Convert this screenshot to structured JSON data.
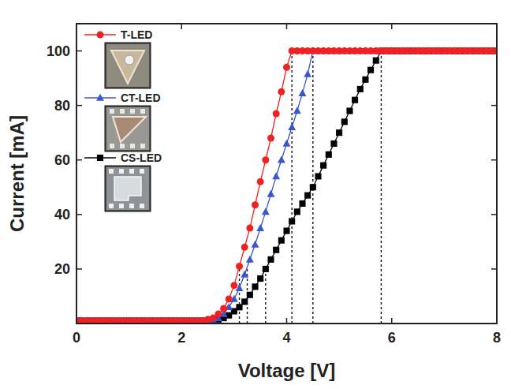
{
  "chart_data": {
    "type": "line",
    "x_label": "Voltage [V]",
    "y_label": "Current [mA]",
    "xlim": [
      0,
      8
    ],
    "ylim": [
      0,
      110
    ],
    "xticks": [
      0,
      2,
      4,
      6,
      8
    ],
    "yticks": [
      20,
      40,
      60,
      80,
      100
    ],
    "legend": "upper left",
    "x": [
      0,
      0.1,
      0.2,
      0.3,
      0.4,
      0.5,
      0.6,
      0.7,
      0.8,
      0.9,
      1,
      1.1,
      1.2,
      1.3,
      1.4,
      1.5,
      1.6,
      1.7,
      1.8,
      1.9,
      2,
      2.1,
      2.2,
      2.3,
      2.4,
      2.5,
      2.6,
      2.7,
      2.8,
      2.9,
      3,
      3.1,
      3.2,
      3.3,
      3.4,
      3.5,
      3.6,
      3.7,
      3.8,
      3.9,
      4,
      4.1,
      4.2,
      4.3,
      4.4,
      4.5,
      4.6,
      4.7,
      4.8,
      4.9,
      5,
      5.1,
      5.2,
      5.3,
      5.4,
      5.5,
      5.6,
      5.7,
      5.8,
      5.9,
      6,
      6.1,
      6.2,
      6.3,
      6.4,
      6.5,
      6.6,
      6.7,
      6.8,
      6.9,
      7,
      7.1,
      7.2,
      7.3,
      7.4,
      7.5,
      7.6,
      7.7,
      7.8,
      7.9,
      8
    ],
    "series": [
      {
        "name": "T-LED",
        "color": "#ee2222",
        "marker": "circle",
        "line_style": "solid",
        "values": [
          1,
          1,
          1,
          1,
          1,
          1,
          1,
          1,
          1,
          1,
          1,
          1,
          1,
          1,
          1,
          1,
          1,
          1,
          1,
          1,
          1,
          1,
          1,
          1,
          1,
          1.5,
          2,
          3.5,
          5.5,
          9,
          14,
          21,
          28,
          35,
          43.5,
          52,
          60,
          68,
          77,
          85,
          94,
          100,
          100,
          100,
          100,
          100,
          100,
          100,
          100,
          100,
          100,
          100,
          100,
          100,
          100,
          100,
          100,
          100,
          100,
          100,
          100,
          100,
          100,
          100,
          100,
          100,
          100,
          100,
          100,
          100,
          100,
          100,
          100,
          100,
          100,
          100,
          100,
          100,
          100,
          100,
          100
        ]
      },
      {
        "name": "CT-LED",
        "color": "#3a55d0",
        "marker": "triangle",
        "line_style": "solid",
        "values": [
          1,
          1,
          1,
          1,
          1,
          1,
          1,
          1,
          1,
          1,
          1,
          1,
          1,
          1,
          1,
          1,
          1,
          1,
          1,
          1,
          1,
          1,
          1,
          1,
          1,
          1,
          1.5,
          2,
          3.5,
          6,
          9,
          13,
          18,
          23.5,
          29,
          35,
          41,
          47.5,
          54,
          60,
          66,
          72,
          78,
          84.5,
          91.5,
          100,
          100,
          100,
          100,
          100,
          100,
          100,
          100,
          100,
          100,
          100,
          100,
          100,
          100,
          100,
          100,
          100,
          100,
          100,
          100,
          100,
          100,
          100,
          100,
          100,
          100,
          100,
          100,
          100,
          100,
          100,
          100,
          100,
          100,
          100,
          100
        ]
      },
      {
        "name": "CS-LED",
        "color": "#000000",
        "marker": "square",
        "line_style": "solid",
        "values": [
          1,
          1,
          1,
          1,
          1,
          1,
          1,
          1,
          1,
          1,
          1,
          1,
          1,
          1,
          1,
          1,
          1,
          1,
          1,
          1,
          1,
          1,
          1,
          1,
          1,
          1,
          1.2,
          1.5,
          2,
          3,
          4.5,
          6,
          8,
          10.5,
          13.5,
          16.5,
          20,
          23.5,
          27,
          30.5,
          34,
          37.5,
          41,
          44,
          47,
          50,
          54,
          58,
          62,
          66,
          70,
          74,
          78,
          82,
          86,
          89.5,
          93,
          96.5,
          100,
          100,
          100,
          100,
          100,
          100,
          100,
          100,
          100,
          100,
          100,
          100,
          100,
          100,
          100,
          100,
          100,
          100,
          100,
          100,
          100,
          100,
          100
        ]
      }
    ],
    "reference_lines": [
      {
        "x": 3.1,
        "y": 20
      },
      {
        "x": 3.25,
        "y": 20
      },
      {
        "x": 3.6,
        "y": 20
      },
      {
        "x": 4.1,
        "y": 100
      },
      {
        "x": 4.5,
        "y": 100
      },
      {
        "x": 5.8,
        "y": 100
      }
    ]
  }
}
